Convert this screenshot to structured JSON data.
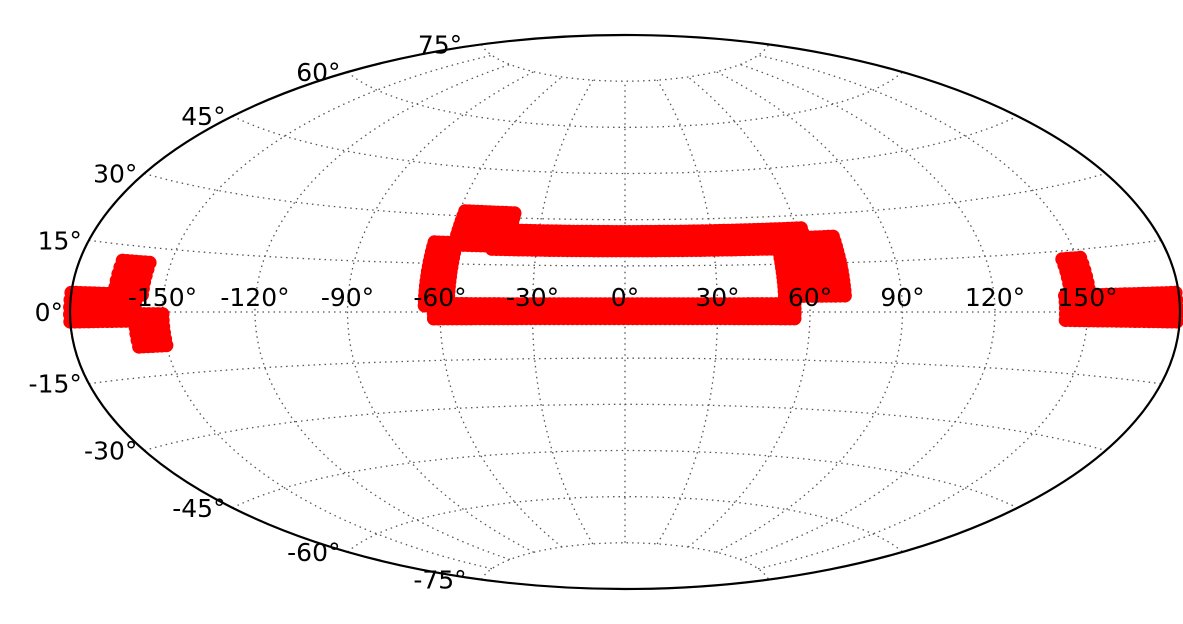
{
  "chart_data": {
    "type": "scatter",
    "projection": "aitoff",
    "title": "",
    "xlabel": "",
    "ylabel": "",
    "grid": true,
    "xlim": [
      -180,
      180
    ],
    "ylim": [
      -90,
      90
    ],
    "x_ticks": [
      {
        "value": -150,
        "label": "-150°"
      },
      {
        "value": -120,
        "label": "-120°"
      },
      {
        "value": -90,
        "label": "-90°"
      },
      {
        "value": -60,
        "label": "-60°"
      },
      {
        "value": -30,
        "label": "-30°"
      },
      {
        "value": 0,
        "label": "0°"
      },
      {
        "value": 30,
        "label": "30°"
      },
      {
        "value": 60,
        "label": "60°"
      },
      {
        "value": 90,
        "label": "90°"
      },
      {
        "value": 120,
        "label": "120°"
      },
      {
        "value": 150,
        "label": "150°"
      }
    ],
    "y_ticks": [
      {
        "value": 75,
        "label": "75°"
      },
      {
        "value": 60,
        "label": "60°"
      },
      {
        "value": 45,
        "label": "45°"
      },
      {
        "value": 30,
        "label": "30°"
      },
      {
        "value": 15,
        "label": "15°"
      },
      {
        "value": 0,
        "label": "0°"
      },
      {
        "value": -15,
        "label": "-15°"
      },
      {
        "value": -30,
        "label": "-30°"
      },
      {
        "value": -45,
        "label": "-45°"
      },
      {
        "value": -60,
        "label": "-60°"
      },
      {
        "value": -75,
        "label": "-75°"
      }
    ],
    "series": [
      {
        "color": "#ff0000",
        "regions": [
          {
            "lon": [
              -62,
              55
            ],
            "lat": [
              -2,
              3
            ]
          },
          {
            "lon": [
              -65,
              -57
            ],
            "lat": [
              2,
              22
            ]
          },
          {
            "lon": [
              -58,
              -40
            ],
            "lat": [
              21,
              32
            ]
          },
          {
            "lon": [
              -45,
              62
            ],
            "lat": [
              20,
              27
            ]
          },
          {
            "lon": [
              52,
              72
            ],
            "lat": [
              5,
              23
            ]
          },
          {
            "lon": [
              -180,
              -159
            ],
            "lat": [
              -2,
              4
            ]
          },
          {
            "lon": [
              -166,
              -157
            ],
            "lat": [
              4,
              12
            ]
          },
          {
            "lon": [
              -159,
              -150
            ],
            "lat": [
              -8,
              0
            ]
          },
          {
            "lon": [
              143,
              180
            ],
            "lat": [
              -2,
              4
            ]
          },
          {
            "lon": [
              145,
              152
            ],
            "lat": [
              4,
              14
            ]
          }
        ]
      }
    ]
  }
}
